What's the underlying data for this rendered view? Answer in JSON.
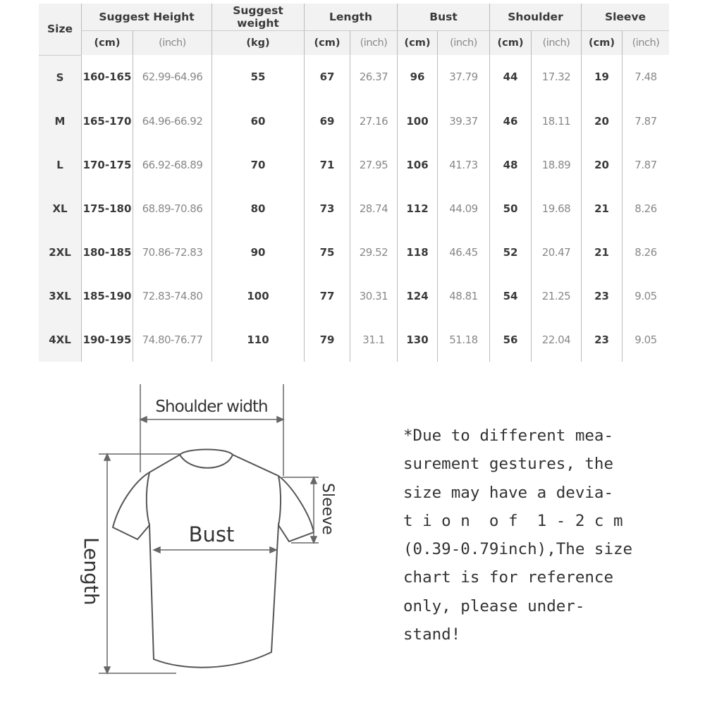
{
  "table": {
    "size_header": "Size",
    "groups": [
      {
        "label": "Suggest Height",
        "units": [
          "(cm)",
          "(inch)"
        ]
      },
      {
        "label": "Suggest weight",
        "units": [
          "(kg)"
        ]
      },
      {
        "label": "Length",
        "units": [
          "(cm)",
          "(inch)"
        ]
      },
      {
        "label": "Bust",
        "units": [
          "(cm)",
          "(inch)"
        ]
      },
      {
        "label": "Shoulder",
        "units": [
          "(cm)",
          "(inch)"
        ]
      },
      {
        "label": "Sleeve",
        "units": [
          "(cm)",
          "(inch)"
        ]
      }
    ],
    "rows": [
      [
        "S",
        "160-165",
        "62.99-64.96",
        "55",
        "67",
        "26.37",
        "96",
        "37.79",
        "44",
        "17.32",
        "19",
        "7.48"
      ],
      [
        "M",
        "165-170",
        "64.96-66.92",
        "60",
        "69",
        "27.16",
        "100",
        "39.37",
        "46",
        "18.11",
        "20",
        "7.87"
      ],
      [
        "L",
        "170-175",
        "66.92-68.89",
        "70",
        "71",
        "27.95",
        "106",
        "41.73",
        "48",
        "18.89",
        "20",
        "7.87"
      ],
      [
        "XL",
        "175-180",
        "68.89-70.86",
        "80",
        "73",
        "28.74",
        "112",
        "44.09",
        "50",
        "19.68",
        "21",
        "8.26"
      ],
      [
        "2XL",
        "180-185",
        "70.86-72.83",
        "90",
        "75",
        "29.52",
        "118",
        "46.45",
        "52",
        "20.47",
        "21",
        "8.26"
      ],
      [
        "3XL",
        "185-190",
        "72.83-74.80",
        "100",
        "77",
        "30.31",
        "124",
        "48.81",
        "54",
        "21.25",
        "23",
        "9.05"
      ],
      [
        "4XL",
        "190-195",
        "74.80-76.77",
        "110",
        "79",
        "31.1",
        "130",
        "51.18",
        "56",
        "22.04",
        "23",
        "9.05"
      ]
    ]
  },
  "diagram": {
    "shoulder_label": "Shoulder width",
    "bust_label": "Bust",
    "sleeve_label": "Sleeve",
    "length_label": "Length"
  },
  "note": {
    "lines": [
      "*Due to different mea-",
      "surement gestures, the",
      "size may have a devia-",
      "t i o n  o f  1 - 2 c m",
      "(0.39-0.79inch),The size",
      "chart is for reference",
      "only, please under-",
      "stand!"
    ]
  }
}
